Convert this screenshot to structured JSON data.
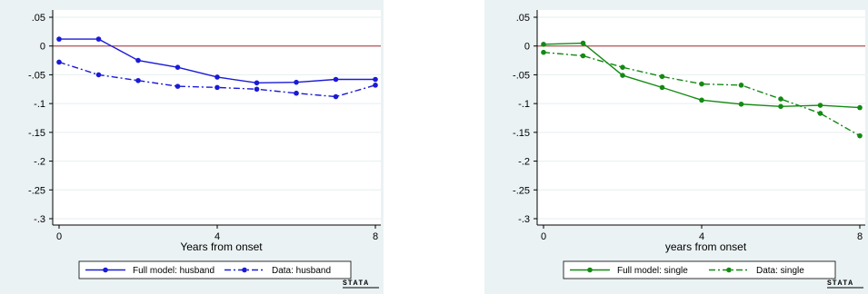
{
  "chart_data": [
    {
      "type": "line",
      "xlabel": "Years from onset",
      "xticks": [
        0,
        4,
        8
      ],
      "yticks": [
        0.05,
        0,
        -0.05,
        -0.1,
        -0.15,
        -0.2,
        -0.25,
        -0.3
      ],
      "ytick_labels": [
        ".05",
        "0",
        "-.05",
        "-.1",
        "-.15",
        "-.2",
        "-.25",
        "-.3"
      ],
      "xlim": [
        0,
        8
      ],
      "ylim": [
        -0.3,
        0.05
      ],
      "reference_line": 0,
      "x": [
        0,
        1,
        2,
        3,
        4,
        5,
        6,
        7,
        8
      ],
      "series": [
        {
          "name": "Full model: husband",
          "style": "solid",
          "color": "#1a1ad6",
          "values": [
            0.012,
            0.012,
            -0.025,
            -0.037,
            -0.054,
            -0.064,
            -0.063,
            -0.058,
            -0.058
          ]
        },
        {
          "name": "Data: husband",
          "style": "dashdot",
          "color": "#1a1ad6",
          "values": [
            -0.028,
            -0.05,
            -0.06,
            -0.07,
            -0.072,
            -0.075,
            -0.082,
            -0.088,
            -0.068
          ]
        }
      ],
      "legend": "bottom",
      "grid": true,
      "badge": "STATA"
    },
    {
      "type": "line",
      "xlabel": "years from onset",
      "xticks": [
        0,
        4,
        8
      ],
      "yticks": [
        0.05,
        0,
        -0.05,
        -0.1,
        -0.15,
        -0.2,
        -0.25,
        -0.3
      ],
      "ytick_labels": [
        ".05",
        "0",
        "-.05",
        "-.1",
        "-.15",
        "-.2",
        "-.25",
        "-.3"
      ],
      "xlim": [
        0,
        8
      ],
      "ylim": [
        -0.3,
        0.05
      ],
      "reference_line": 0,
      "x": [
        0,
        1,
        2,
        3,
        4,
        5,
        6,
        7,
        8
      ],
      "series": [
        {
          "name": "Full model: single",
          "style": "solid",
          "color": "#138a13",
          "values": [
            0.003,
            0.005,
            -0.051,
            -0.072,
            -0.094,
            -0.101,
            -0.105,
            -0.103,
            -0.107
          ]
        },
        {
          "name": "Data: single",
          "style": "dashdot",
          "color": "#138a13",
          "values": [
            -0.011,
            -0.017,
            -0.037,
            -0.053,
            -0.066,
            -0.068,
            -0.092,
            -0.117,
            -0.156
          ]
        }
      ],
      "legend": "bottom",
      "grid": true,
      "badge": "STATA"
    }
  ]
}
